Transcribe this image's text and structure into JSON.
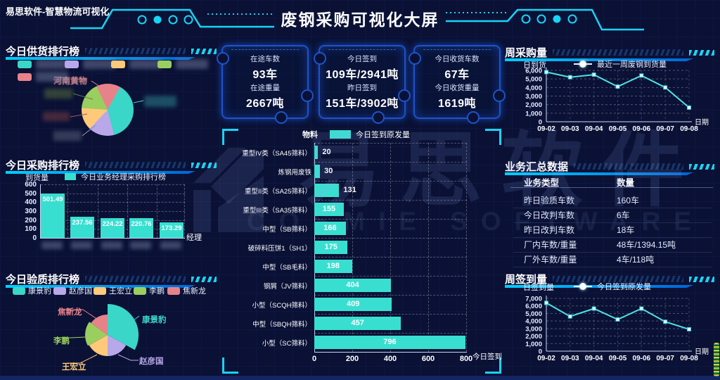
{
  "header": {
    "app_title": "易思软件-智慧物流可视化",
    "page_title": "废钢采购可视化大屏"
  },
  "watermark": {
    "cn": "易思软件",
    "en": "COSMIE SOFTWARE"
  },
  "colors": {
    "accent": "#19d3f5",
    "bar_teal": "#38dfd0",
    "underline_blue": "#0064d8",
    "card_border": "#1c53c8"
  },
  "stat_cards": [
    {
      "rows": [
        {
          "label": "在途车数",
          "value": "93车"
        },
        {
          "label": "在途重量",
          "value": "2667吨"
        }
      ]
    },
    {
      "rows": [
        {
          "label": "今日签到",
          "value": "109车/2941吨"
        },
        {
          "label": "昨日签到",
          "value": "151车/3902吨"
        }
      ]
    },
    {
      "rows": [
        {
          "label": "今日收货车数",
          "value": "67车"
        },
        {
          "label": "今日收货重量",
          "value": "1619吨"
        }
      ]
    }
  ],
  "panels": {
    "supply": {
      "title": "今日供货排行榜",
      "visible_pie_label": "河南黄物",
      "note": "supplier legend names are blurred in source image"
    },
    "purchase": {
      "title": "今日采购排行榜",
      "ylabel": "到货量",
      "legend": "今日业务经理采购排行榜",
      "xlabel": "经理"
    },
    "quality": {
      "title": "今日验质排行榜"
    },
    "material": {
      "axis_name": "物料",
      "legend": "今日签到原发量",
      "x_axis_name": "今日签到"
    },
    "weekly_purchase": {
      "title": "周采购量",
      "ylabel": "日到货",
      "legend": "最近一周废钢到货量",
      "xlabel": "日期"
    },
    "summary": {
      "title": "业务汇总数据",
      "columns": [
        "业务类型",
        "数量"
      ]
    },
    "weekly_signin": {
      "title": "周签到量",
      "ylabel": "日签到量",
      "legend": "今日签到原发量",
      "xlabel": "日期"
    }
  },
  "chart_data": [
    {
      "id": "supply_pie",
      "panel": "今日供货排行榜",
      "type": "pie",
      "note": "only one pie label readable; others blurred",
      "segments": [
        {
          "label": "河南黄物",
          "color": "#e8828a",
          "pct_est": 15
        },
        {
          "label": "",
          "color": "#3ad6c8",
          "pct_est": 38
        },
        {
          "label": "",
          "color": "#b9a8e9",
          "pct_est": 16
        },
        {
          "label": "",
          "color": "#ffc97a",
          "pct_est": 14
        },
        {
          "label": "",
          "color": "#9ace5f",
          "pct_est": 17
        }
      ]
    },
    {
      "id": "purchase_bar",
      "panel": "今日采购排行榜",
      "type": "bar",
      "legend": "今日业务经理采购排行榜",
      "ylabel": "到货量",
      "xlabel": "经理",
      "ylim": [
        0,
        600
      ],
      "ytick_step": 100,
      "categories": [
        "",
        "",
        "",
        "",
        ""
      ],
      "categories_redacted": true,
      "values": [
        501.49,
        237.56,
        224.22,
        220.76,
        173.29
      ],
      "bar_color": "#38dfd0"
    },
    {
      "id": "quality_pie",
      "panel": "今日验质排行榜",
      "type": "pie",
      "style": "rose",
      "segments": [
        {
          "label": "康景豹",
          "color": "#3ad6c8",
          "pct_est": 33
        },
        {
          "label": "赵彦国",
          "color": "#b9a8e9",
          "pct_est": 17
        },
        {
          "label": "王宏立",
          "color": "#ffc97a",
          "pct_est": 17
        },
        {
          "label": "李鹏",
          "color": "#9ace5f",
          "pct_est": 18
        },
        {
          "label": "焦新龙",
          "color": "#e8828a",
          "pct_est": 15
        }
      ]
    },
    {
      "id": "material_bar",
      "panel": "center",
      "type": "bar",
      "orientation": "horizontal",
      "legend": "今日签到原发量",
      "axis_name_y": "物料",
      "axis_name_x": "今日签到",
      "xlim": [
        0,
        800
      ],
      "xtick_step": 200,
      "categories": [
        "重型IV类（SA45筛料）",
        "炼钢用废铁",
        "重型II类（SA25筛料）",
        "重型III类（SA35筛料）",
        "中型（SB筛料）",
        "破碎料压饼1（SH1）",
        "中型（SB毛料）",
        "钢屑（JV筛料）",
        "小型（SCQH筛料）",
        "中型（SBQH筛料）",
        "小型（SC筛料）"
      ],
      "values": [
        20,
        30,
        131,
        155,
        166,
        175,
        198,
        404,
        409,
        457,
        796
      ],
      "bar_color": "#38dfd0"
    },
    {
      "id": "weekly_purchase_line",
      "panel": "周采购量",
      "type": "line",
      "legend": "最近一周废钢到货量",
      "ylabel": "日到货",
      "xlabel": "日期",
      "ylim": [
        0,
        6000
      ],
      "ytick_step": 1000,
      "x": [
        "09-02",
        "09-03",
        "09-04",
        "09-05",
        "09-06",
        "09-07",
        "09-08"
      ],
      "values_est": [
        5800,
        5200,
        5500,
        4100,
        5400,
        4000,
        1650
      ],
      "line_color": "#4fe3e6"
    },
    {
      "id": "summary_table",
      "panel": "业务汇总数据",
      "type": "table",
      "columns": [
        "业务类型",
        "数量"
      ],
      "rows": [
        [
          "昨日验质车数",
          "160车"
        ],
        [
          "今日改判车数",
          "6车"
        ],
        [
          "昨日改判车数",
          "18车"
        ],
        [
          "厂内车数/重量",
          "48车/1394.15吨"
        ],
        [
          "厂外车数/重量",
          "4车/118吨"
        ]
      ]
    },
    {
      "id": "weekly_signin_line",
      "panel": "周签到量",
      "type": "line",
      "legend": "今日签到原发量",
      "ylabel": "日签到量",
      "xlabel": "日期",
      "ylim": [
        0,
        7000
      ],
      "ytick_step": 1000,
      "x": [
        "09-02",
        "09-03",
        "09-04",
        "09-05",
        "09-06",
        "09-07",
        "09-08"
      ],
      "values_est": [
        6400,
        4600,
        5650,
        4200,
        5650,
        3900,
        2900
      ],
      "line_color": "#4fe3e6"
    }
  ]
}
